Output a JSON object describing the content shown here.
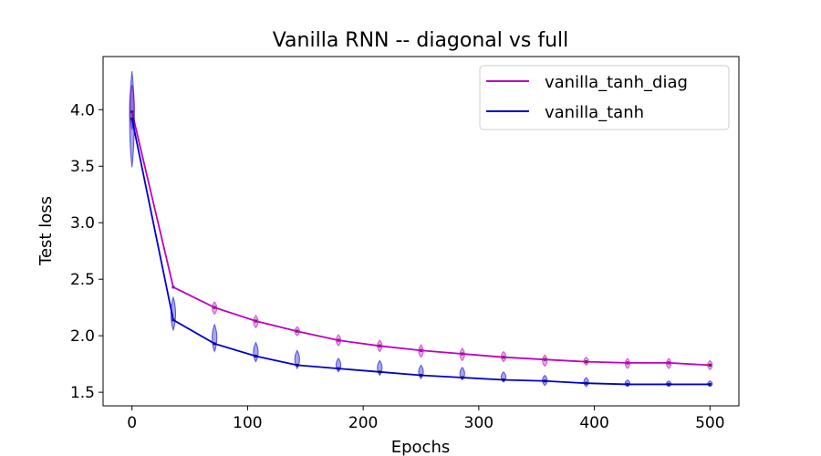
{
  "chart_data": {
    "type": "line",
    "title": "Vanilla RNN -- diagonal vs full",
    "xlabel": "Epochs",
    "ylabel": "Test loss",
    "xlim": [
      -25,
      525
    ],
    "ylim": [
      1.38,
      4.47
    ],
    "xticks": [
      0,
      100,
      200,
      300,
      400,
      500
    ],
    "yticks": [
      1.5,
      2.0,
      2.5,
      3.0,
      3.5,
      4.0
    ],
    "ytick_labels": [
      "1.5",
      "2.0",
      "2.5",
      "3.0",
      "3.5",
      "4.0"
    ],
    "legend_position": "top-right",
    "grid": false,
    "x": [
      0,
      35.7,
      71.4,
      107.1,
      142.9,
      178.6,
      214.3,
      250,
      285.7,
      321.4,
      357.1,
      392.9,
      428.6,
      464.3,
      500
    ],
    "series": [
      {
        "name": "vanilla_tanh_diag",
        "color": "#bf00bf",
        "values": [
          3.98,
          2.43,
          2.25,
          2.13,
          2.04,
          1.96,
          1.91,
          1.87,
          1.84,
          1.81,
          1.79,
          1.77,
          1.76,
          1.76,
          1.74
        ],
        "spread_low": [
          3.82,
          2.43,
          2.19,
          2.07,
          2.0,
          1.91,
          1.86,
          1.81,
          1.78,
          1.77,
          1.73,
          1.74,
          1.71,
          1.71,
          1.7
        ],
        "spread_high": [
          4.22,
          2.43,
          2.3,
          2.18,
          2.08,
          2.01,
          1.96,
          1.92,
          1.89,
          1.86,
          1.83,
          1.81,
          1.8,
          1.8,
          1.78
        ]
      },
      {
        "name": "vanilla_tanh",
        "color": "#0000cc",
        "values": [
          3.92,
          2.14,
          1.93,
          1.82,
          1.74,
          1.71,
          1.68,
          1.65,
          1.63,
          1.61,
          1.6,
          1.58,
          1.57,
          1.57,
          1.57
        ],
        "spread_low": [
          3.49,
          2.05,
          1.86,
          1.77,
          1.71,
          1.68,
          1.65,
          1.62,
          1.61,
          1.59,
          1.56,
          1.55,
          1.55,
          1.55,
          1.55
        ],
        "spread_high": [
          4.34,
          2.34,
          2.1,
          1.94,
          1.87,
          1.8,
          1.78,
          1.74,
          1.72,
          1.68,
          1.65,
          1.63,
          1.61,
          1.6,
          1.6
        ]
      }
    ]
  }
}
